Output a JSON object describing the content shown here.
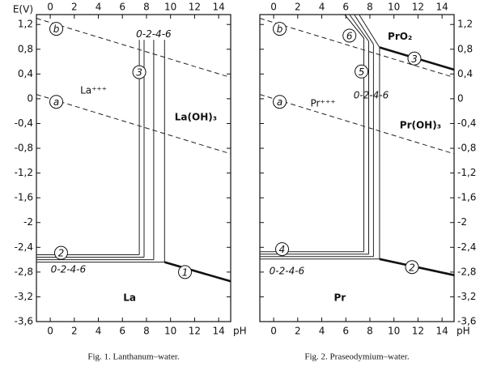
{
  "chart_data": [
    {
      "type": "line",
      "caption": "Fig. 1. Lanthanum–water.",
      "xlabel": "pH",
      "ylabel": "E(V)",
      "yaxis_side": "left",
      "xlim": [
        -1.15,
        15
      ],
      "ylim": [
        -3.6,
        1.36
      ],
      "xticks": [
        0,
        2,
        4,
        6,
        8,
        10,
        12,
        14
      ],
      "yticks": [
        {
          "value": 1.2,
          "label": "1,2"
        },
        {
          "value": 0.8,
          "label": "0,8"
        },
        {
          "value": 0.4,
          "label": "0,4"
        },
        0,
        {
          "value": -0.4,
          "label": "-0,4"
        },
        {
          "value": -0.8,
          "label": "-0,8"
        },
        {
          "value": -1.2,
          "label": "-1,2"
        },
        {
          "value": -1.6,
          "label": "-1,6"
        },
        -2,
        {
          "value": -2.4,
          "label": "-2,4"
        },
        {
          "value": -2.8,
          "label": "-2,8"
        },
        {
          "value": -3.2,
          "label": "-3,2"
        },
        {
          "value": -3.6,
          "label": "-3,6"
        }
      ],
      "series": [
        {
          "color": "#222222",
          "style": "dashed",
          "weight": "normal",
          "x": [
            -1.15,
            15
          ],
          "values": [
            1.3,
            0.345
          ]
        },
        {
          "color": "#222222",
          "style": "dashed",
          "weight": "normal",
          "x": [
            -1.15,
            15
          ],
          "values": [
            0.07,
            -0.89
          ]
        },
        {
          "color": "#111111",
          "style": "solid",
          "weight": "bold",
          "x": [
            9.5,
            15
          ],
          "values": [
            -2.64,
            -2.95
          ]
        },
        {
          "color": "#222222",
          "style": "solid",
          "weight": "normal",
          "x": [
            -1.15,
            7.4,
            null,
            -1.15,
            7.8,
            null,
            -1.15,
            8.6,
            null,
            -1.15,
            9.5
          ],
          "values": [
            -2.52,
            -2.52,
            null,
            -2.56,
            -2.56,
            null,
            -2.6,
            -2.6,
            null,
            -2.64,
            -2.64
          ]
        },
        {
          "color": "#222222",
          "style": "solid",
          "weight": "normal",
          "x": [
            7.4,
            7.4,
            null,
            7.8,
            7.8,
            null,
            8.6,
            8.6,
            null,
            9.5,
            9.5
          ],
          "values": [
            -2.52,
            0.95,
            null,
            -2.56,
            0.95,
            null,
            -2.6,
            0.95,
            null,
            -2.64,
            0.95
          ]
        }
      ],
      "callouts": [
        {
          "text": "b",
          "x": 0.5,
          "y": 1.13
        },
        {
          "text": "a",
          "x": 0.5,
          "y": -0.05
        },
        {
          "text": "3",
          "x": 7.4,
          "y": 0.43
        },
        {
          "text": "2",
          "x": 0.9,
          "y": -2.49
        },
        {
          "text": "1",
          "x": 11.2,
          "y": -2.8
        }
      ],
      "annotations": [
        {
          "text": "La⁺⁺⁺",
          "x": 3.6,
          "y": 0.13,
          "style": "normal"
        },
        {
          "text": "La(OH)₃",
          "x": 12.1,
          "y": -0.3,
          "style": "bold"
        },
        {
          "text": "La",
          "x": 6.6,
          "y": -3.22,
          "style": "bold"
        },
        {
          "text": "0-2-4-6",
          "x": 8.6,
          "y": 1.04,
          "style": "italic"
        },
        {
          "text": "0-2-4-6",
          "x": 1.5,
          "y": -2.76,
          "style": "italic"
        }
      ]
    },
    {
      "type": "line",
      "caption": "Fig. 2. Praseodymium–water.",
      "xlabel": "pH",
      "yaxis_side": "right",
      "xlim": [
        -1.15,
        15
      ],
      "ylim": [
        -3.6,
        1.36
      ],
      "xticks": [
        0,
        2,
        4,
        6,
        8,
        10,
        12,
        14
      ],
      "yticks": [
        {
          "value": 1.2,
          "label": "1,2"
        },
        {
          "value": 0.8,
          "label": "0,8"
        },
        {
          "value": 0.4,
          "label": "0,4"
        },
        0,
        {
          "value": -0.4,
          "label": "-0,4"
        },
        {
          "value": -0.8,
          "label": "-0,8"
        },
        {
          "value": -1.2,
          "label": "-1,2"
        },
        {
          "value": -1.6,
          "label": "-1,6"
        },
        -2,
        {
          "value": -2.4,
          "label": "-2,4"
        },
        {
          "value": -2.8,
          "label": "-2,8"
        },
        {
          "value": -3.2,
          "label": "-3,2"
        },
        {
          "value": -3.6,
          "label": "-3,6"
        }
      ],
      "series": [
        {
          "color": "#222222",
          "style": "dashed",
          "weight": "normal",
          "x": [
            -1.15,
            15
          ],
          "values": [
            1.3,
            0.345
          ]
        },
        {
          "color": "#222222",
          "style": "dashed",
          "weight": "normal",
          "x": [
            -1.15,
            15
          ],
          "values": [
            0.07,
            -0.89
          ]
        },
        {
          "color": "#222222",
          "style": "solid",
          "weight": "normal",
          "x": [
            5.9,
            7.5,
            null,
            6.3,
            7.9,
            null,
            6.7,
            8.3,
            null,
            7.1,
            8.8
          ],
          "values": [
            1.36,
            0.98,
            null,
            1.36,
            0.93,
            null,
            1.36,
            0.88,
            null,
            1.36,
            0.83
          ]
        },
        {
          "color": "#111111",
          "style": "solid",
          "weight": "bold",
          "x": [
            8.8,
            15
          ],
          "values": [
            0.83,
            0.47
          ]
        },
        {
          "color": "#222222",
          "style": "solid",
          "weight": "normal",
          "x": [
            7.5,
            7.5,
            null,
            7.9,
            7.9,
            null,
            8.3,
            8.3,
            null,
            8.8,
            8.8
          ],
          "values": [
            -2.47,
            0.98,
            null,
            -2.51,
            0.93,
            null,
            -2.55,
            0.88,
            null,
            -2.59,
            0.83
          ]
        },
        {
          "color": "#222222",
          "style": "solid",
          "weight": "normal",
          "x": [
            -1.15,
            7.5,
            null,
            -1.15,
            7.9,
            null,
            -1.15,
            8.3,
            null,
            -1.15,
            8.8
          ],
          "values": [
            -2.47,
            -2.47,
            null,
            -2.51,
            -2.51,
            null,
            -2.55,
            -2.55,
            null,
            -2.59,
            -2.59
          ]
        },
        {
          "color": "#111111",
          "style": "solid",
          "weight": "bold",
          "x": [
            8.8,
            15
          ],
          "values": [
            -2.59,
            -2.85
          ]
        }
      ],
      "callouts": [
        {
          "text": "b",
          "x": 0.5,
          "y": 1.13
        },
        {
          "text": "a",
          "x": 0.5,
          "y": -0.05
        },
        {
          "text": "6",
          "x": 6.3,
          "y": 1.02
        },
        {
          "text": "3",
          "x": 11.7,
          "y": 0.65
        },
        {
          "text": "5",
          "x": 7.3,
          "y": 0.44
        },
        {
          "text": "4",
          "x": 0.7,
          "y": -2.43
        },
        {
          "text": "2",
          "x": 11.5,
          "y": -2.72
        }
      ],
      "annotations": [
        {
          "text": "PrO₂",
          "x": 10.5,
          "y": 1.0,
          "style": "bold"
        },
        {
          "text": "Pr⁺⁺⁺",
          "x": 4.1,
          "y": -0.08,
          "style": "normal"
        },
        {
          "text": "Pr(OH)₃",
          "x": 12.2,
          "y": -0.43,
          "style": "bold"
        },
        {
          "text": "Pr",
          "x": 5.5,
          "y": -3.22,
          "style": "bold"
        },
        {
          "text": "0-2-4-6",
          "x": 8.1,
          "y": 0.05,
          "style": "italic"
        },
        {
          "text": "0-2-4-6",
          "x": 1.1,
          "y": -2.79,
          "style": "italic"
        }
      ]
    }
  ]
}
